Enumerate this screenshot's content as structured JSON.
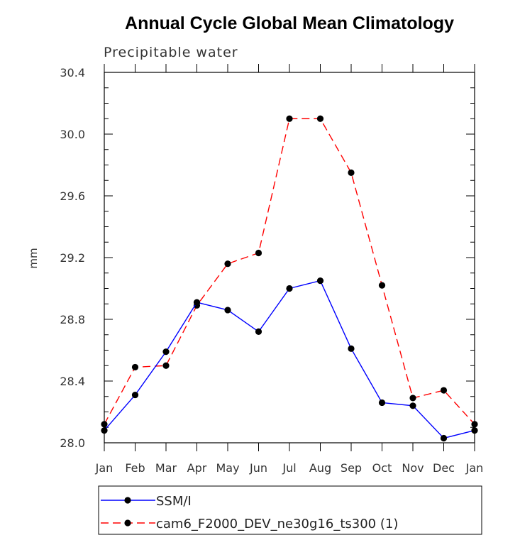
{
  "chart_data": {
    "type": "line",
    "title": "Annual Cycle Global Mean Climatology",
    "subtitle": "Precipitable water",
    "xlabel": "",
    "ylabel": "mm",
    "categories": [
      "Jan",
      "Feb",
      "Mar",
      "Apr",
      "May",
      "Jun",
      "Jul",
      "Aug",
      "Sep",
      "Oct",
      "Nov",
      "Dec",
      "Jan"
    ],
    "ylim": [
      28.0,
      30.4
    ],
    "yticks": [
      "28.0",
      "28.4",
      "28.8",
      "29.2",
      "29.6",
      "30.0",
      "30.4"
    ],
    "grid": false,
    "legend_position": "bottom",
    "series": [
      {
        "name": "SSM/I",
        "color": "#0000ff",
        "dash": "solid",
        "marker": "filled-circle",
        "values": [
          28.08,
          28.31,
          28.59,
          28.91,
          28.86,
          28.72,
          29.0,
          29.05,
          28.61,
          28.26,
          28.24,
          28.03,
          28.08
        ]
      },
      {
        "name": "cam6_F2000_DEV_ne30g16_ts300 (1)",
        "color": "#ff0000",
        "dash": "dashed",
        "marker": "filled-circle",
        "values": [
          28.12,
          28.49,
          28.5,
          28.89,
          29.16,
          29.23,
          30.1,
          30.1,
          29.75,
          29.02,
          28.29,
          28.34,
          28.12
        ]
      }
    ]
  }
}
